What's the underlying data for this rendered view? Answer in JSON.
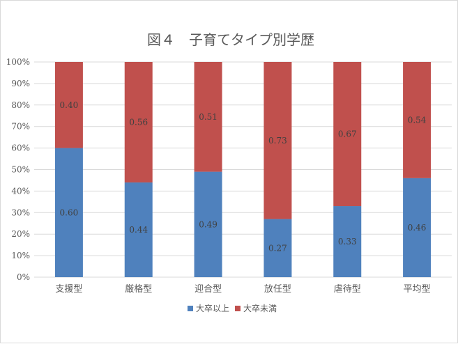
{
  "chart_data": {
    "type": "bar",
    "stacked": true,
    "title": "図４　子育てタイプ別学歴",
    "categories": [
      "支援型",
      "厳格型",
      "迎合型",
      "放任型",
      "虐待型",
      "平均型"
    ],
    "series": [
      {
        "name": "大卒以上",
        "color": "#4f81bd",
        "values": [
          0.6,
          0.44,
          0.49,
          0.27,
          0.33,
          0.46
        ],
        "labels": [
          "0.60",
          "0.44",
          "0.49",
          "0.27",
          "0.33",
          "0.46"
        ]
      },
      {
        "name": "大卒未満",
        "color": "#c0504d",
        "values": [
          0.4,
          0.56,
          0.51,
          0.73,
          0.67,
          0.54
        ],
        "labels": [
          "0.40",
          "0.56",
          "0.51",
          "0.73",
          "0.67",
          "0.54"
        ]
      }
    ],
    "y_ticks": [
      "0%",
      "10%",
      "20%",
      "30%",
      "40%",
      "50%",
      "60%",
      "70%",
      "80%",
      "90%",
      "100%"
    ],
    "ylim": [
      0,
      1
    ],
    "grid": true,
    "legend_position": "bottom"
  }
}
